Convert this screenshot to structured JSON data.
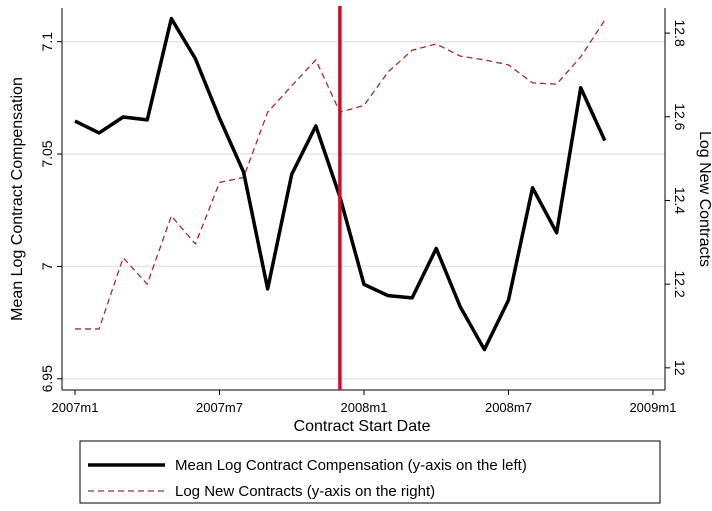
{
  "chart_data": {
    "type": "line",
    "x": [
      0,
      1,
      2,
      3,
      4,
      5,
      6,
      7,
      8,
      9,
      10,
      11,
      12,
      13,
      14,
      15,
      16,
      17,
      18,
      19,
      20,
      21,
      22
    ],
    "xlabel": "Contract Start Date",
    "ylabel": "Mean Log Contract Compensation",
    "y2label": "Log New Contracts",
    "xlim": [
      -0.54,
      24.5
    ],
    "xticks": [
      {
        "value": 0,
        "label": "2007m1"
      },
      {
        "value": 6,
        "label": "2007m7"
      },
      {
        "value": 12,
        "label": "2008m1"
      },
      {
        "value": 18,
        "label": "2008m7"
      },
      {
        "value": 24,
        "label": "2009m1"
      }
    ],
    "ylim": [
      6.945,
      7.115
    ],
    "yticks": [
      6.95,
      7,
      7.05,
      7.1
    ],
    "y2lim": [
      11.947,
      12.86
    ],
    "y2ticks": [
      12,
      12.2,
      12.4,
      12.6,
      12.8
    ],
    "grid": true,
    "vline": 11,
    "vline_color": "#c8102e",
    "series": [
      {
        "name": "Mean Log Contract Compensation (y-axis on the left)",
        "color": "#000000",
        "style": "solid",
        "values": [
          7.0647,
          7.0594,
          7.0665,
          7.0652,
          7.1103,
          7.0924,
          7.066,
          7.042,
          6.99,
          7.041,
          7.0625,
          7.031,
          6.992,
          6.987,
          6.986,
          7.008,
          6.982,
          6.963,
          6.985,
          7.035,
          7.015,
          7.0795,
          7.056
        ]
      },
      {
        "name": "Log New Contracts (y-axis on the right)",
        "color": "#a0302a",
        "style": "dashed",
        "axis": "y2",
        "values": [
          12.093,
          12.093,
          12.263,
          12.2,
          12.363,
          12.296,
          12.443,
          12.455,
          12.611,
          12.674,
          12.736,
          12.611,
          12.627,
          12.707,
          12.759,
          12.774,
          12.745,
          12.736,
          12.724,
          12.681,
          12.678,
          12.743,
          12.831
        ]
      }
    ]
  }
}
